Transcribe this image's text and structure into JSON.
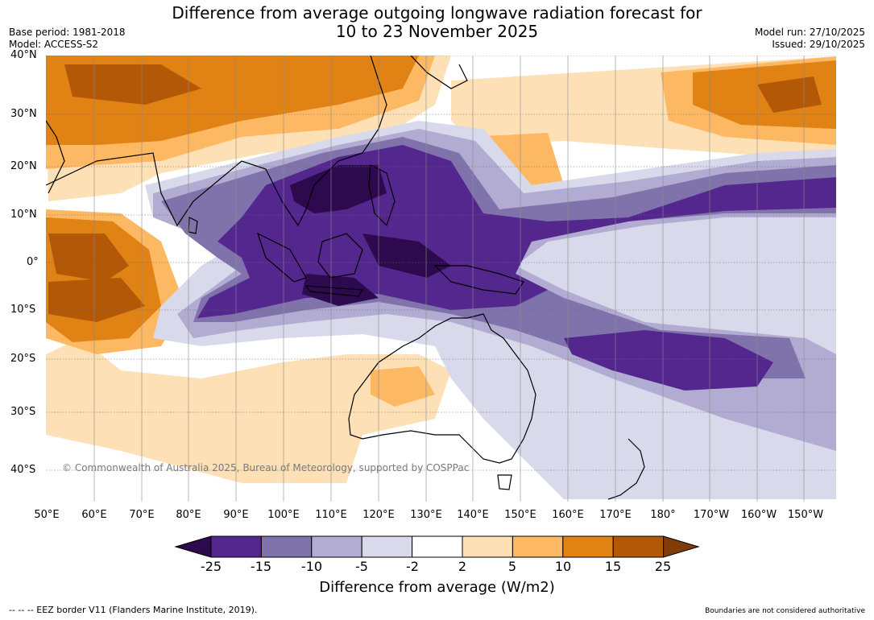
{
  "title_line1": "Difference from average outgoing longwave radiation forecast for",
  "title_line2": "10 to 23 November 2025",
  "base_period": "Base period: 1981-2018",
  "model": "Model: ACCESS-S2",
  "model_run": "Model run: 27/10/2025",
  "issued": "Issued: 29/10/2025",
  "copyright": "© Commonwealth of Australia 2025, Bureau of Meteorology, supported by COSPPac",
  "lat_labels": [
    "40°N",
    "30°N",
    "20°N",
    "10°N",
    "0°",
    "10°S",
    "20°S",
    "30°S",
    "40°S"
  ],
  "lon_labels": [
    "50°E",
    "60°E",
    "70°E",
    "80°E",
    "90°E",
    "100°E",
    "110°E",
    "120°E",
    "130°E",
    "140°E",
    "150°E",
    "160°E",
    "170°E",
    "180°",
    "170°W",
    "160°W",
    "150°W"
  ],
  "colorbar": {
    "ticks": [
      "-25",
      "-15",
      "-10",
      "-5",
      "-2",
      "2",
      "5",
      "10",
      "15",
      "25"
    ],
    "label": "Difference from average (W/m2)",
    "colors": {
      "lt_-25": "#2d0a4e",
      "-25_-15": "#54278f",
      "-15_-10": "#8073ac",
      "-10_-5": "#b2abd2",
      "-5_-2": "#d8daeb",
      "-2_2": "#ffffff",
      "2_5": "#fee0b6",
      "5_10": "#fdb863",
      "10_15": "#e08214",
      "15_25": "#b35806",
      "gt_25": "#7f3b08"
    }
  },
  "footer_left": "--  --  -- EEZ border V11 (Flanders Marine Institute, 2019).",
  "footer_right": "Boundaries are not considered authoritative"
}
